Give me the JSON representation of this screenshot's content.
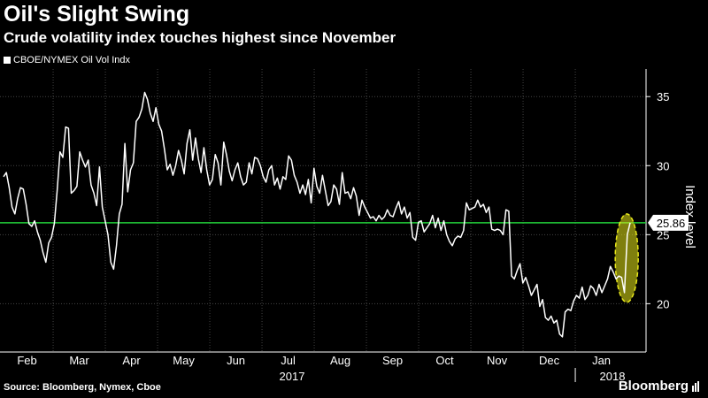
{
  "title": "Oil's Slight Swing",
  "subtitle": "Crude volatility index touches highest since November",
  "source": "Source: Bloomberg, Nymex, Cboe",
  "brand": "Bloomberg",
  "chart_data": {
    "type": "line",
    "title": "Oil's Slight Swing",
    "subtitle": "Crude volatility index touches highest since November",
    "ylabel": "Index level",
    "ylim": [
      16.5,
      37
    ],
    "yticks": [
      20,
      25,
      30,
      35
    ],
    "months": [
      "Feb",
      "Mar",
      "Apr",
      "May",
      "Jun",
      "Jul",
      "Aug",
      "Sep",
      "Oct",
      "Nov",
      "Dec",
      "Jan"
    ],
    "years": [
      "2017",
      "2018"
    ],
    "reference_line": {
      "value": 25.86,
      "label": "25.86",
      "color": "#22d13a"
    },
    "highlight": {
      "description": "yellow dashed ellipse around last move",
      "color": "#e8e81a"
    },
    "grid": true,
    "legend_position": "top-left",
    "series": [
      {
        "name": "CBOE/NYMEX Oil Vol Indx",
        "color": "#ffffff",
        "points": [
          [
            0,
            29.2
          ],
          [
            1,
            29.5
          ],
          [
            2,
            28.4
          ],
          [
            3,
            27.0
          ],
          [
            4,
            26.5
          ],
          [
            5,
            27.6
          ],
          [
            6,
            28.4
          ],
          [
            7,
            28.3
          ],
          [
            8,
            27.2
          ],
          [
            9,
            25.8
          ],
          [
            10,
            25.6
          ],
          [
            11,
            26.0
          ],
          [
            12,
            25.2
          ],
          [
            13,
            24.6
          ],
          [
            14,
            23.7
          ],
          [
            15,
            23.0
          ],
          [
            16,
            24.4
          ],
          [
            17,
            24.8
          ],
          [
            18,
            25.8
          ],
          [
            19,
            28.2
          ],
          [
            20,
            31.0
          ],
          [
            21,
            30.6
          ],
          [
            22,
            32.8
          ],
          [
            23,
            32.7
          ],
          [
            24,
            28.0
          ],
          [
            25,
            28.2
          ],
          [
            26,
            28.5
          ],
          [
            27,
            31.0
          ],
          [
            28,
            30.4
          ],
          [
            29,
            29.9
          ],
          [
            30,
            30.4
          ],
          [
            31,
            28.6
          ],
          [
            32,
            28.0
          ],
          [
            33,
            27.1
          ],
          [
            34,
            29.9
          ],
          [
            35,
            27.0
          ],
          [
            36,
            26.0
          ],
          [
            37,
            25.0
          ],
          [
            38,
            23.0
          ],
          [
            39,
            22.5
          ],
          [
            40,
            24.2
          ],
          [
            41,
            26.5
          ],
          [
            42,
            27.2
          ],
          [
            43,
            31.6
          ],
          [
            44,
            28.1
          ],
          [
            45,
            29.7
          ],
          [
            46,
            30.2
          ],
          [
            47,
            33.2
          ],
          [
            48,
            33.5
          ],
          [
            49,
            34.1
          ],
          [
            50,
            35.3
          ],
          [
            51,
            34.8
          ],
          [
            52,
            33.8
          ],
          [
            53,
            33.2
          ],
          [
            54,
            34.2
          ],
          [
            55,
            33.0
          ],
          [
            56,
            32.5
          ],
          [
            57,
            31.2
          ],
          [
            58,
            29.7
          ],
          [
            59,
            30.1
          ],
          [
            60,
            29.3
          ],
          [
            61,
            30.0
          ],
          [
            62,
            31.1
          ],
          [
            63,
            30.4
          ],
          [
            64,
            29.4
          ],
          [
            65,
            31.6
          ],
          [
            66,
            32.6
          ],
          [
            67,
            30.4
          ],
          [
            68,
            32.0
          ],
          [
            69,
            30.5
          ],
          [
            70,
            29.5
          ],
          [
            71,
            31.3
          ],
          [
            72,
            29.7
          ],
          [
            73,
            28.6
          ],
          [
            74,
            29.0
          ],
          [
            75,
            30.8
          ],
          [
            76,
            30.2
          ],
          [
            77,
            28.6
          ],
          [
            78,
            31.7
          ],
          [
            79,
            30.8
          ],
          [
            80,
            29.6
          ],
          [
            81,
            28.9
          ],
          [
            82,
            29.7
          ],
          [
            83,
            30.2
          ],
          [
            84,
            29.2
          ],
          [
            85,
            28.6
          ],
          [
            86,
            28.8
          ],
          [
            87,
            30.2
          ],
          [
            88,
            29.4
          ],
          [
            89,
            30.6
          ],
          [
            90,
            30.5
          ],
          [
            91,
            30.0
          ],
          [
            92,
            29.2
          ],
          [
            93,
            28.8
          ],
          [
            94,
            29.7
          ],
          [
            95,
            30.0
          ],
          [
            96,
            28.6
          ],
          [
            97,
            29.1
          ],
          [
            98,
            28.3
          ],
          [
            99,
            29.2
          ],
          [
            100,
            29.0
          ],
          [
            101,
            30.7
          ],
          [
            102,
            30.4
          ],
          [
            103,
            29.3
          ],
          [
            104,
            28.8
          ],
          [
            105,
            28.0
          ],
          [
            106,
            28.6
          ],
          [
            107,
            27.9
          ],
          [
            108,
            29.0
          ],
          [
            109,
            27.3
          ],
          [
            110,
            29.8
          ],
          [
            111,
            28.5
          ],
          [
            112,
            28.0
          ],
          [
            113,
            29.3
          ],
          [
            114,
            28.2
          ],
          [
            115,
            27.1
          ],
          [
            116,
            27.4
          ],
          [
            117,
            28.6
          ],
          [
            118,
            28.3
          ],
          [
            119,
            27.2
          ],
          [
            120,
            29.5
          ],
          [
            121,
            28.0
          ],
          [
            122,
            28.1
          ],
          [
            123,
            27.6
          ],
          [
            124,
            28.4
          ],
          [
            125,
            27.8
          ],
          [
            126,
            26.4
          ],
          [
            127,
            27.5
          ],
          [
            128,
            27.0
          ],
          [
            129,
            26.6
          ],
          [
            130,
            26.2
          ],
          [
            131,
            26.3
          ],
          [
            132,
            26.0
          ],
          [
            133,
            26.4
          ],
          [
            134,
            26.1
          ],
          [
            135,
            26.3
          ],
          [
            136,
            26.8
          ],
          [
            137,
            26.4
          ],
          [
            138,
            26.3
          ],
          [
            139,
            26.9
          ],
          [
            140,
            27.4
          ],
          [
            141,
            26.5
          ],
          [
            142,
            27.0
          ],
          [
            143,
            26.2
          ],
          [
            144,
            26.6
          ],
          [
            145,
            24.8
          ],
          [
            146,
            24.6
          ],
          [
            147,
            25.9
          ],
          [
            148,
            26.0
          ],
          [
            149,
            25.2
          ],
          [
            150,
            25.5
          ],
          [
            151,
            25.8
          ],
          [
            152,
            26.4
          ],
          [
            153,
            25.5
          ],
          [
            154,
            26.2
          ],
          [
            155,
            25.3
          ],
          [
            156,
            26.0
          ],
          [
            157,
            25.0
          ],
          [
            158,
            24.5
          ],
          [
            159,
            24.2
          ],
          [
            160,
            24.7
          ],
          [
            161,
            24.9
          ],
          [
            162,
            24.8
          ],
          [
            163,
            25.3
          ],
          [
            164,
            27.3
          ],
          [
            165,
            26.8
          ],
          [
            166,
            26.9
          ],
          [
            167,
            27.0
          ],
          [
            168,
            27.5
          ],
          [
            169,
            27.0
          ],
          [
            170,
            27.2
          ],
          [
            171,
            26.6
          ],
          [
            172,
            27.0
          ],
          [
            173,
            25.4
          ],
          [
            174,
            25.3
          ],
          [
            175,
            25.4
          ],
          [
            176,
            25.3
          ],
          [
            177,
            25.0
          ],
          [
            178,
            26.8
          ],
          [
            179,
            26.7
          ],
          [
            180,
            22.0
          ],
          [
            181,
            21.8
          ],
          [
            182,
            22.4
          ],
          [
            183,
            22.9
          ],
          [
            184,
            21.5
          ],
          [
            185,
            21.9
          ],
          [
            186,
            21.3
          ],
          [
            187,
            20.6
          ],
          [
            188,
            21.0
          ],
          [
            189,
            21.4
          ],
          [
            190,
            19.8
          ],
          [
            191,
            20.3
          ],
          [
            192,
            19.0
          ],
          [
            193,
            18.8
          ],
          [
            194,
            19.1
          ],
          [
            195,
            18.6
          ],
          [
            196,
            18.8
          ],
          [
            197,
            17.8
          ],
          [
            198,
            17.6
          ],
          [
            199,
            19.4
          ],
          [
            200,
            19.6
          ],
          [
            201,
            19.5
          ],
          [
            202,
            20.2
          ],
          [
            203,
            20.6
          ],
          [
            204,
            20.4
          ],
          [
            205,
            21.2
          ],
          [
            206,
            20.3
          ],
          [
            207,
            20.6
          ],
          [
            208,
            21.3
          ],
          [
            209,
            21.1
          ],
          [
            210,
            20.6
          ],
          [
            211,
            21.4
          ],
          [
            212,
            20.8
          ],
          [
            213,
            21.3
          ],
          [
            214,
            21.8
          ],
          [
            215,
            22.7
          ],
          [
            216,
            22.3
          ],
          [
            217,
            21.8
          ],
          [
            218,
            22.0
          ],
          [
            219,
            21.9
          ],
          [
            220,
            20.8
          ],
          [
            221,
            25.0
          ],
          [
            222,
            25.86
          ]
        ]
      }
    ]
  }
}
